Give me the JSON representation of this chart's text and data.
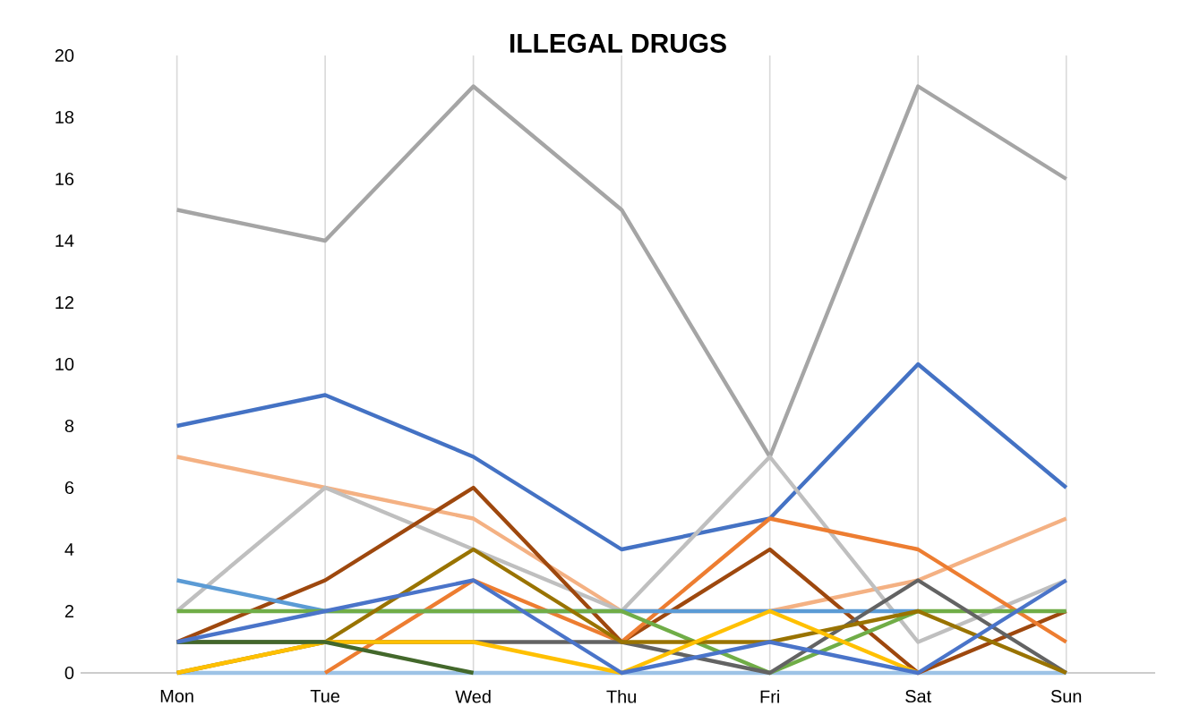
{
  "chart_data": {
    "type": "line",
    "title": "ILLEGAL  DRUGS",
    "categories": [
      "Mon",
      "Tue",
      "Wed",
      "Thu",
      "Fri",
      "Sat",
      "Sun"
    ],
    "ylim": [
      0,
      20
    ],
    "yticks": [
      0,
      2,
      4,
      6,
      8,
      10,
      12,
      14,
      16,
      18,
      20
    ],
    "grid": "x",
    "marker": "none",
    "line_style": "solid",
    "series": [
      {
        "color": "#9dc3e6",
        "values": [
          0,
          0,
          0,
          0,
          0,
          0,
          0
        ]
      },
      {
        "color": "#a5a5a5",
        "values": [
          15,
          14,
          19,
          15,
          7,
          19,
          16
        ]
      },
      {
        "color": "#4472c4",
        "values": [
          8,
          9,
          7,
          4,
          5,
          10,
          6
        ]
      },
      {
        "color": "#f4b183",
        "values": [
          7,
          6,
          5,
          2,
          2,
          3,
          5
        ]
      },
      {
        "color": "#bfbfbf",
        "values": [
          2,
          6,
          4,
          2,
          7,
          1,
          3
        ]
      },
      {
        "color": "#9e480e",
        "values": [
          1,
          3,
          6,
          1,
          4,
          0,
          2
        ]
      },
      {
        "color": "#ed7d31",
        "values": [
          null,
          0,
          3,
          1,
          5,
          4,
          1
        ]
      },
      {
        "color": "#5b9bd5",
        "values": [
          3,
          2,
          2,
          2,
          2,
          2,
          null
        ]
      },
      {
        "color": "#70ad47",
        "values": [
          2,
          2,
          2,
          2,
          0,
          2,
          2
        ]
      },
      {
        "color": "#636363",
        "values": [
          1,
          1,
          1,
          1,
          0,
          3,
          0
        ]
      },
      {
        "color": "#997300",
        "values": [
          0,
          1,
          4,
          1,
          1,
          2,
          0
        ]
      },
      {
        "color": "#ffc000",
        "values": [
          0,
          1,
          1,
          0,
          2,
          0,
          null
        ]
      },
      {
        "color": "#43682b",
        "values": [
          1,
          1,
          0,
          null,
          null,
          null,
          null
        ]
      },
      {
        "color": "#4a74c9",
        "values": [
          1,
          2,
          3,
          0,
          1,
          0,
          3
        ]
      }
    ]
  }
}
